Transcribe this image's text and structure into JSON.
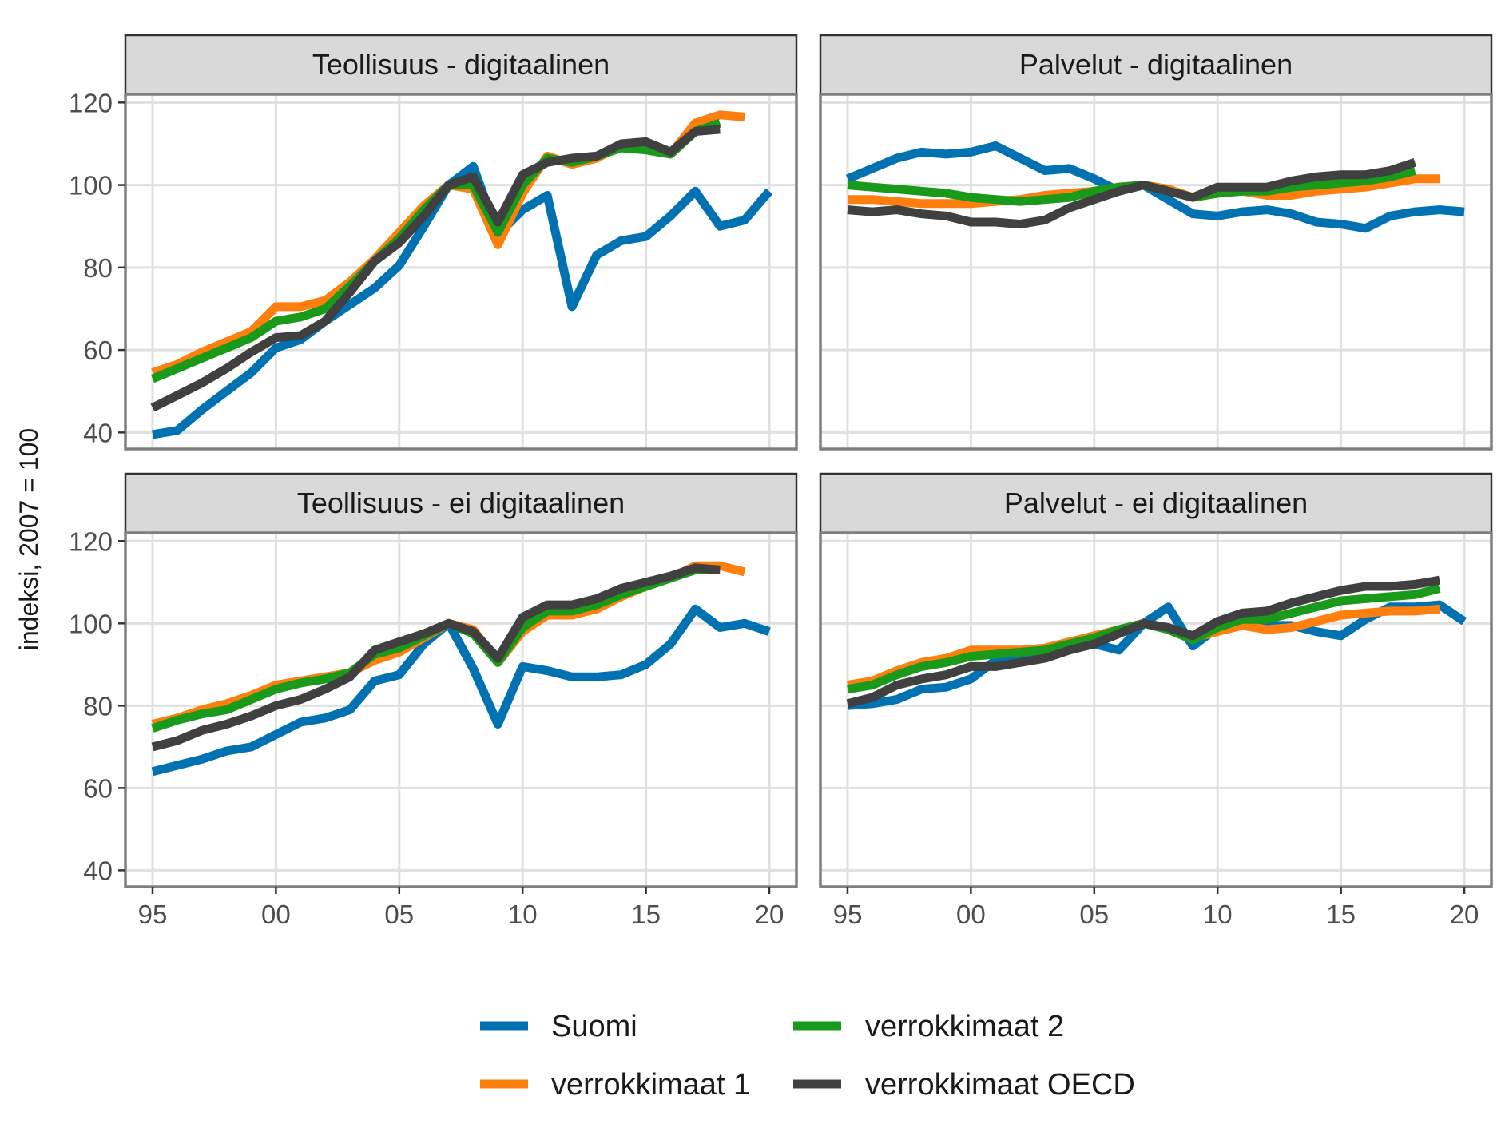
{
  "chart_data": {
    "type": "line",
    "ylabel": "indeksi, 2007 = 100",
    "xlabel": "",
    "ylim": [
      36,
      122
    ],
    "xlim": [
      1993.9,
      2021.1
    ],
    "y_ticks": [
      40,
      60,
      80,
      100,
      120
    ],
    "x_ticks": [
      {
        "value": 1995,
        "label": "95"
      },
      {
        "value": 2000,
        "label": "00"
      },
      {
        "value": 2005,
        "label": "05"
      },
      {
        "value": 2010,
        "label": "10"
      },
      {
        "value": 2015,
        "label": "15"
      },
      {
        "value": 2020,
        "label": "20"
      }
    ],
    "grid": true,
    "legend_position": "bottom",
    "series_styles": [
      {
        "name": "Suomi",
        "color": "#0072B2"
      },
      {
        "name": "verrokkimaat 1",
        "color": "#FF7F0E"
      },
      {
        "name": "verrokkimaat 2",
        "color": "#1A9A1A"
      },
      {
        "name": "verrokkimaat OECD",
        "color": "#404040"
      }
    ],
    "legend_layout": [
      [
        "Suomi",
        "verrokkimaat 2"
      ],
      [
        "verrokkimaat 1",
        "verrokkimaat OECD"
      ]
    ],
    "panels": [
      {
        "title": "Teollisuus - digitaalinen",
        "series": [
          {
            "name": "Suomi",
            "x": [
              1995,
              1996,
              1997,
              1998,
              1999,
              2000,
              2001,
              2002,
              2003,
              2004,
              2005,
              2006,
              2007,
              2008,
              2009,
              2010,
              2011,
              2012,
              2013,
              2014,
              2015,
              2016,
              2017,
              2018,
              2019,
              2020
            ],
            "values": [
              39.5,
              40.5,
              45.5,
              50,
              54.5,
              60.5,
              62.5,
              67,
              71,
              75,
              80.5,
              90,
              100,
              104.5,
              88,
              94,
              97.5,
              70.5,
              83,
              86.5,
              87.5,
              92.5,
              98.5,
              90,
              91.5,
              98.5
            ]
          },
          {
            "name": "verrokkimaat 1",
            "x": [
              1995,
              1996,
              1997,
              1998,
              1999,
              2000,
              2001,
              2002,
              2003,
              2004,
              2005,
              2006,
              2007,
              2008,
              2009,
              2010,
              2011,
              2012,
              2013,
              2014,
              2015,
              2016,
              2017,
              2018,
              2019
            ],
            "values": [
              54.5,
              56.5,
              59.5,
              62,
              64.5,
              70.5,
              70.5,
              72,
              76.5,
              82,
              88.5,
              95,
              100,
              99,
              85.5,
              98,
              107,
              105,
              106.5,
              109.5,
              110,
              107.5,
              115,
              117,
              116.5
            ]
          },
          {
            "name": "verrokkimaat 2",
            "x": [
              1995,
              1996,
              1997,
              1998,
              1999,
              2000,
              2001,
              2002,
              2003,
              2004,
              2005,
              2006,
              2007,
              2008,
              2009,
              2010,
              2011,
              2012,
              2013,
              2014,
              2015,
              2016,
              2017,
              2018
            ],
            "values": [
              53,
              55.5,
              58,
              60.5,
              63,
              67,
              68,
              70,
              75.5,
              81.5,
              87,
              94,
              100,
              100,
              88.5,
              100,
              106.5,
              105.5,
              107,
              109,
              108.5,
              107.5,
              113,
              115
            ]
          },
          {
            "name": "verrokkimaat OECD",
            "x": [
              1995,
              1996,
              1997,
              1998,
              1999,
              2000,
              2001,
              2002,
              2003,
              2004,
              2005,
              2006,
              2007,
              2008,
              2009,
              2010,
              2011,
              2012,
              2013,
              2014,
              2015,
              2016,
              2017,
              2018
            ],
            "values": [
              46,
              49,
              52,
              55.5,
              59.5,
              63,
              63.5,
              67,
              74,
              81.5,
              86,
              92.5,
              100,
              102,
              91,
              102.5,
              105.5,
              106.5,
              107,
              110,
              110.5,
              108,
              113,
              113.5
            ]
          }
        ]
      },
      {
        "title": "Palvelut - digitaalinen",
        "series": [
          {
            "name": "Suomi",
            "x": [
              1995,
              1996,
              1997,
              1998,
              1999,
              2000,
              2001,
              2002,
              2003,
              2004,
              2005,
              2006,
              2007,
              2008,
              2009,
              2010,
              2011,
              2012,
              2013,
              2014,
              2015,
              2016,
              2017,
              2018,
              2019,
              2020
            ],
            "values": [
              101.5,
              104,
              106.5,
              108,
              107.5,
              108,
              109.5,
              106.5,
              103.5,
              104,
              101.5,
              98.5,
              100,
              96.5,
              93,
              92.5,
              93.5,
              94,
              93,
              91,
              90.5,
              89.5,
              92.5,
              93.5,
              94,
              93.5
            ]
          },
          {
            "name": "verrokkimaat 1",
            "x": [
              1995,
              1996,
              1997,
              1998,
              1999,
              2000,
              2001,
              2002,
              2003,
              2004,
              2005,
              2006,
              2007,
              2008,
              2009,
              2010,
              2011,
              2012,
              2013,
              2014,
              2015,
              2016,
              2017,
              2018,
              2019
            ],
            "values": [
              96.5,
              96.5,
              96,
              95.5,
              95.5,
              95.5,
              96,
              96.5,
              97.5,
              98,
              98.5,
              99.5,
              100,
              99,
              97,
              98,
              98.5,
              97.5,
              97.5,
              98.5,
              99,
              99.5,
              100.5,
              101.5,
              101.5
            ]
          },
          {
            "name": "verrokkimaat 2",
            "x": [
              1995,
              1996,
              1997,
              1998,
              1999,
              2000,
              2001,
              2002,
              2003,
              2004,
              2005,
              2006,
              2007,
              2008,
              2009,
              2010,
              2011,
              2012,
              2013,
              2014,
              2015,
              2016,
              2017,
              2018
            ],
            "values": [
              100,
              99.5,
              99,
              98.5,
              98,
              97,
              96.5,
              96,
              96.5,
              97,
              98.5,
              99.5,
              100,
              98.5,
              97,
              98,
              98.5,
              98.5,
              99.5,
              100,
              100.5,
              101,
              102,
              103.5
            ]
          },
          {
            "name": "verrokkimaat OECD",
            "x": [
              1995,
              1996,
              1997,
              1998,
              1999,
              2000,
              2001,
              2002,
              2003,
              2004,
              2005,
              2006,
              2007,
              2008,
              2009,
              2010,
              2011,
              2012,
              2013,
              2014,
              2015,
              2016,
              2017,
              2018
            ],
            "values": [
              94,
              93.5,
              94,
              93,
              92.5,
              91,
              91,
              90.5,
              91.5,
              94.5,
              96.5,
              98.5,
              100,
              98.5,
              97,
              99.5,
              99.5,
              99.5,
              101,
              102,
              102.5,
              102.5,
              103.5,
              105.5
            ]
          }
        ]
      },
      {
        "title": "Teollisuus - ei digitaalinen",
        "series": [
          {
            "name": "Suomi",
            "x": [
              1995,
              1996,
              1997,
              1998,
              1999,
              2000,
              2001,
              2002,
              2003,
              2004,
              2005,
              2006,
              2007,
              2008,
              2009,
              2010,
              2011,
              2012,
              2013,
              2014,
              2015,
              2016,
              2017,
              2018,
              2019,
              2020
            ],
            "values": [
              64,
              65.5,
              67,
              69,
              70,
              73,
              76,
              77,
              79,
              86,
              87.5,
              95,
              100,
              89,
              75.5,
              89.5,
              88.5,
              87,
              87,
              87.5,
              90,
              95,
              103.5,
              99,
              100,
              98
            ]
          },
          {
            "name": "verrokkimaat 1",
            "x": [
              1995,
              1996,
              1997,
              1998,
              1999,
              2000,
              2001,
              2002,
              2003,
              2004,
              2005,
              2006,
              2007,
              2008,
              2009,
              2010,
              2011,
              2012,
              2013,
              2014,
              2015,
              2016,
              2017,
              2018,
              2019
            ],
            "values": [
              75.5,
              77,
              79,
              80.5,
              82.5,
              85,
              86,
              87,
              88,
              91,
              93,
              96.5,
              100,
              98.5,
              90.5,
              98,
              102,
              102,
              103.5,
              106.5,
              109,
              111,
              114,
              114,
              112.5
            ]
          },
          {
            "name": "verrokkimaat 2",
            "x": [
              1995,
              1996,
              1997,
              1998,
              1999,
              2000,
              2001,
              2002,
              2003,
              2004,
              2005,
              2006,
              2007,
              2008,
              2009,
              2010,
              2011,
              2012,
              2013,
              2014,
              2015,
              2016,
              2017,
              2018
            ],
            "values": [
              74.5,
              76.5,
              78,
              79,
              81.5,
              84,
              85.5,
              86.5,
              88,
              92.5,
              94,
              97,
              100,
              97.5,
              90.5,
              99,
              103,
              103,
              104.5,
              107,
              109,
              111,
              113,
              113
            ]
          },
          {
            "name": "verrokkimaat OECD",
            "x": [
              1995,
              1996,
              1997,
              1998,
              1999,
              2000,
              2001,
              2002,
              2003,
              2004,
              2005,
              2006,
              2007,
              2008,
              2009,
              2010,
              2011,
              2012,
              2013,
              2014,
              2015,
              2016,
              2017,
              2018
            ],
            "values": [
              70,
              71.5,
              74,
              75.5,
              77.5,
              80,
              81.5,
              84,
              87,
              93.5,
              95.5,
              97.5,
              100,
              98,
              91.5,
              101.5,
              104.5,
              104.5,
              106,
              108.5,
              110,
              111.5,
              113.5,
              113
            ]
          }
        ]
      },
      {
        "title": "Palvelut - ei digitaalinen",
        "series": [
          {
            "name": "Suomi",
            "x": [
              1995,
              1996,
              1997,
              1998,
              1999,
              2000,
              2001,
              2002,
              2003,
              2004,
              2005,
              2006,
              2007,
              2008,
              2009,
              2010,
              2011,
              2012,
              2013,
              2014,
              2015,
              2016,
              2017,
              2018,
              2019,
              2020
            ],
            "values": [
              80,
              80.5,
              81.5,
              84,
              84.5,
              86.5,
              91,
              92,
              92.5,
              94,
              95,
              93.5,
              100,
              104,
              94.5,
              99,
              100,
              99.5,
              99.5,
              98,
              97,
              101,
              104,
              104,
              104.5,
              100.5
            ]
          },
          {
            "name": "verrokkimaat 1",
            "x": [
              1995,
              1996,
              1997,
              1998,
              1999,
              2000,
              2001,
              2002,
              2003,
              2004,
              2005,
              2006,
              2007,
              2008,
              2009,
              2010,
              2011,
              2012,
              2013,
              2014,
              2015,
              2016,
              2017,
              2018,
              2019
            ],
            "values": [
              85,
              86,
              88.5,
              90.5,
              91.5,
              93.5,
              93.5,
              93.5,
              94,
              95.5,
              97,
              98.5,
              100,
              99,
              96.5,
              98,
              99.5,
              98.5,
              99,
              100.5,
              102,
              102.5,
              103,
              103,
              103.5
            ]
          },
          {
            "name": "verrokkimaat 2",
            "x": [
              1995,
              1996,
              1997,
              1998,
              1999,
              2000,
              2001,
              2002,
              2003,
              2004,
              2005,
              2006,
              2007,
              2008,
              2009,
              2010,
              2011,
              2012,
              2013,
              2014,
              2015,
              2016,
              2017,
              2018,
              2019
            ],
            "values": [
              84,
              85,
              87.5,
              89.5,
              90.5,
              92,
              92.5,
              93,
              93.5,
              95,
              96.5,
              98.5,
              100,
              98.5,
              96,
              99,
              101,
              101,
              102.5,
              104,
              105.5,
              106,
              106.5,
              107,
              108.5
            ]
          },
          {
            "name": "verrokkimaat OECD",
            "x": [
              1995,
              1996,
              1997,
              1998,
              1999,
              2000,
              2001,
              2002,
              2003,
              2004,
              2005,
              2006,
              2007,
              2008,
              2009,
              2010,
              2011,
              2012,
              2013,
              2014,
              2015,
              2016,
              2017,
              2018,
              2019
            ],
            "values": [
              80.5,
              82,
              85,
              86.5,
              87.5,
              89.5,
              89.5,
              90.5,
              91.5,
              93.5,
              95,
              97.5,
              100,
              99,
              97,
              100.5,
              102.5,
              103,
              105,
              106.5,
              108,
              109,
              109,
              109.5,
              110.5
            ]
          }
        ]
      }
    ]
  }
}
